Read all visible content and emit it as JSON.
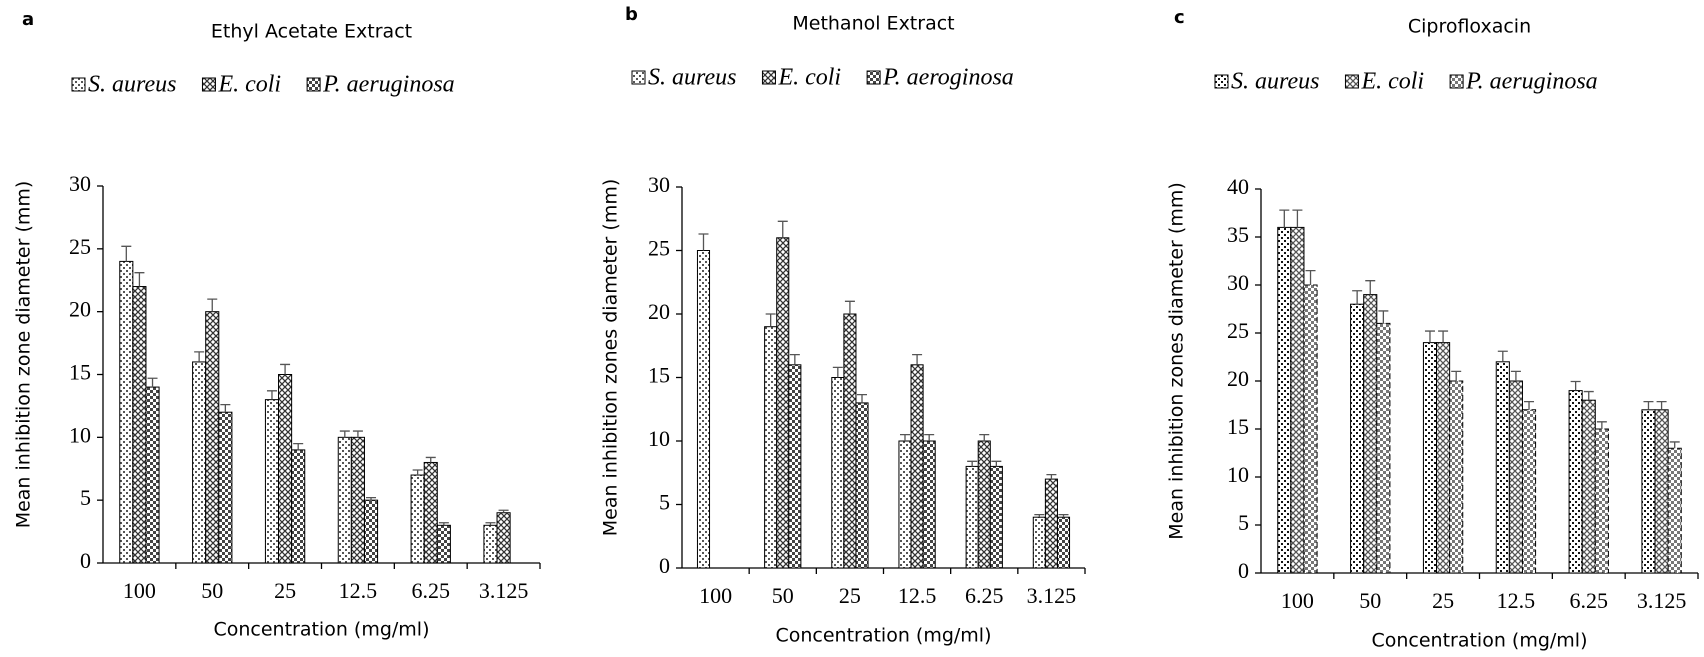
{
  "chart_data": [
    {
      "type": "bar",
      "panel": "a",
      "title": "Ethyl Acetate Extract",
      "categories": [
        "100",
        "50",
        "25",
        "12.5",
        "6.25",
        "3.125"
      ],
      "series": [
        {
          "name": "S. aureus",
          "color": "#555555",
          "values": [
            24,
            16,
            13,
            10,
            7,
            3
          ],
          "errors": [
            1.2,
            0.8,
            0.7,
            0.5,
            0.4,
            0.2
          ]
        },
        {
          "name": "E. coli",
          "color": "#333333",
          "values": [
            22,
            20,
            15,
            10,
            8,
            4
          ],
          "errors": [
            1.1,
            1.0,
            0.8,
            0.5,
            0.4,
            0.2
          ]
        },
        {
          "name": "P. aeruginosa",
          "color": "#444444",
          "values": [
            14,
            12,
            9,
            5,
            3,
            0
          ],
          "errors": [
            0.7,
            0.6,
            0.5,
            0.2,
            0.2,
            0
          ]
        }
      ],
      "ylim": [
        0,
        30
      ],
      "yticks": [
        0,
        5,
        10,
        15,
        20,
        25,
        30
      ],
      "ylabel": "Mean inhibition zone diameter (mm)",
      "xlabel": "Concentration (mg/ml)"
    },
    {
      "type": "bar",
      "panel": "b",
      "title": "Methanol Extract",
      "categories": [
        "100",
        "50",
        "25",
        "12.5",
        "6.25",
        "3.125"
      ],
      "series": [
        {
          "name": "S. aureus",
          "color": "#555555",
          "values": [
            25,
            19,
            15,
            10,
            8,
            4
          ],
          "errors": [
            1.3,
            1.0,
            0.8,
            0.5,
            0.4,
            0.2
          ]
        },
        {
          "name": "E. coli",
          "color": "#333333",
          "values": [
            0,
            26,
            20,
            16,
            10,
            7
          ],
          "errors": [
            0,
            1.3,
            1.0,
            0.8,
            0.5,
            0.35
          ]
        },
        {
          "name": "P. aeroginosa",
          "color": "#444444",
          "values": [
            0,
            16,
            13,
            10,
            8,
            4
          ],
          "errors": [
            0,
            0.8,
            0.65,
            0.5,
            0.4,
            0.2
          ]
        }
      ],
      "ylim": [
        0,
        30
      ],
      "yticks": [
        0,
        5,
        10,
        15,
        20,
        25,
        30
      ],
      "ylabel": "Mean inhibition zones diameter (mm)",
      "xlabel": "Concentration (mg/ml)"
    },
    {
      "type": "bar",
      "panel": "c",
      "title": "Ciprofloxacin",
      "categories": [
        "100",
        "50",
        "25",
        "12.5",
        "6.25",
        "3.125"
      ],
      "series": [
        {
          "name": "S. aureus",
          "color": "#111111",
          "values": [
            36,
            28,
            24,
            22,
            19,
            17
          ],
          "errors": [
            1.8,
            1.4,
            1.2,
            1.1,
            0.95,
            0.85
          ]
        },
        {
          "name": "E. coli",
          "color": "#555555",
          "values": [
            36,
            29,
            24,
            20,
            18,
            17
          ],
          "errors": [
            1.8,
            1.45,
            1.2,
            1.0,
            0.9,
            0.85
          ]
        },
        {
          "name": "P. aeruginosa",
          "color": "#777777",
          "values": [
            30,
            26,
            20,
            17,
            15,
            13
          ],
          "errors": [
            1.5,
            1.3,
            1.0,
            0.85,
            0.75,
            0.65
          ]
        }
      ],
      "ylim": [
        0,
        40
      ],
      "yticks": [
        0,
        5,
        10,
        15,
        20,
        25,
        30,
        35,
        40
      ],
      "ylabel": "Mean inhibition zones diameter (mm)",
      "xlabel": "Concentration (mg/ml)"
    }
  ]
}
